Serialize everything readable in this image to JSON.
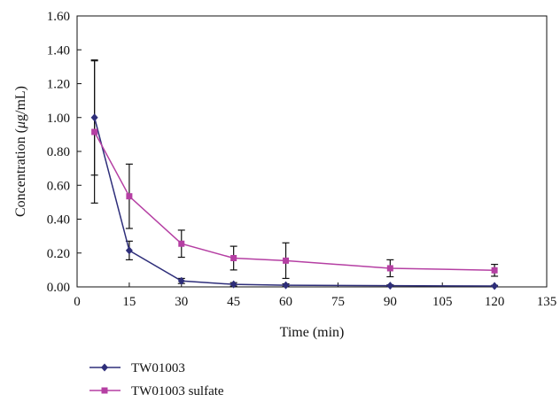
{
  "chart_data": {
    "type": "line",
    "title": "",
    "xlabel": "Time (min)",
    "ylabel_parts": [
      "Concentration (",
      "μ",
      "g/mL)"
    ],
    "xlim": [
      0,
      135
    ],
    "ylim": [
      0,
      1.6
    ],
    "x_ticks": [
      0,
      15,
      30,
      45,
      60,
      75,
      90,
      105,
      120,
      135
    ],
    "x_tick_labels": [
      "0",
      "15",
      "30",
      "45",
      "60",
      "75",
      "90",
      "105",
      "120",
      "135"
    ],
    "y_ticks": [
      0,
      0.2,
      0.4,
      0.6,
      0.8,
      1.0,
      1.2,
      1.4,
      1.6
    ],
    "y_tick_labels": [
      "0.00",
      "0.20",
      "0.40",
      "0.60",
      "0.80",
      "1.00",
      "1.20",
      "1.40",
      "1.60"
    ],
    "grid": false,
    "legend_position": "bottom-left",
    "series": [
      {
        "name": "TW01003",
        "color": "#2e2e7a",
        "marker": "diamond",
        "x": [
          5,
          15,
          30,
          45,
          60,
          90,
          120
        ],
        "y": [
          1.0,
          0.215,
          0.035,
          0.015,
          0.01,
          0.007,
          0.005
        ],
        "err": [
          0.34,
          0.055,
          0.015,
          0.01,
          0.008,
          0.005,
          0.004
        ]
      },
      {
        "name": "TW01003 sulfate",
        "color": "#b53fa3",
        "marker": "square",
        "x": [
          5,
          15,
          30,
          45,
          60,
          90,
          120
        ],
        "y": [
          0.915,
          0.535,
          0.255,
          0.17,
          0.155,
          0.11,
          0.098
        ],
        "err": [
          0.42,
          0.19,
          0.08,
          0.07,
          0.105,
          0.05,
          0.035
        ]
      }
    ]
  }
}
